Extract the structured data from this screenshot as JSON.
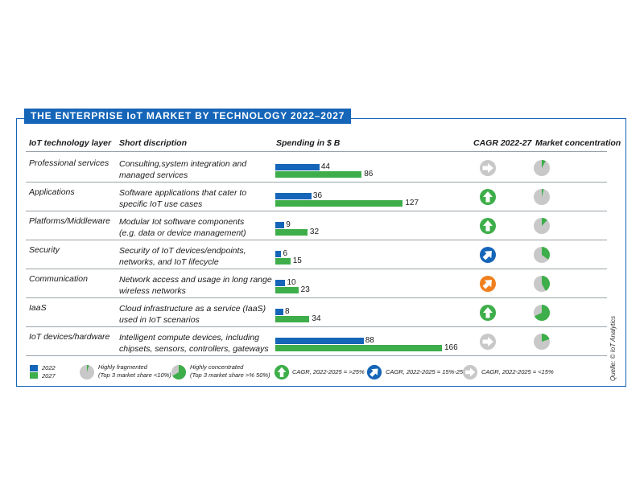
{
  "title": "THE ENTERPRISE IoT MARKET BY TECHNOLOGY 2022–2027",
  "headers": {
    "layer": "IoT technology layer",
    "description": "Short discription",
    "spending": "Spending in $ B",
    "cagr": "CAGR 2022-27",
    "concentration": "Market concentration"
  },
  "colors": {
    "y2022": "#1565b8",
    "y2027": "#3dae49",
    "cagr_high": "#3dae49",
    "cagr_mid": "#1565b8",
    "cagr_mid_alt": "#f07f1e",
    "cagr_low": "#c8c8c8",
    "fragmented": "#c8c8c8",
    "concentrated": "#3dae49"
  },
  "chart_data": {
    "type": "bar",
    "orientation": "horizontal",
    "categories": [
      "Professional services",
      "Applications",
      "Platforms/Middleware",
      "Security",
      "Communication",
      "IaaS",
      "IoT devices/hardware"
    ],
    "series": [
      {
        "name": "2022",
        "values": [
          44,
          36,
          9,
          6,
          10,
          8,
          88
        ]
      },
      {
        "name": "2027",
        "values": [
          86,
          127,
          32,
          15,
          23,
          34,
          166
        ]
      }
    ],
    "xlabel": "Spending in $ B",
    "xlim": [
      0,
      166
    ]
  },
  "rows": [
    {
      "layer": "Professional services",
      "description": "Consulting,system integration and\nmanaged services",
      "v2022": "44",
      "v2027": "86",
      "cagr": "low",
      "cagr_color": "#c8c8c8",
      "concentration_share": 0.08
    },
    {
      "layer": "Applications",
      "description": "Software applications that cater to\nspecific IoT use cases",
      "v2022": "36",
      "v2027": "127",
      "cagr": "high",
      "cagr_color": "#3dae49",
      "concentration_share": 0.04
    },
    {
      "layer": "Platforms/Middleware",
      "description": "Modular Iot software components\n (e.g. data or device management)",
      "v2022": "9",
      "v2027": "32",
      "cagr": "high",
      "cagr_color": "#3dae49",
      "concentration_share": 0.12
    },
    {
      "layer": "Security",
      "description": "Security of IoT devices/endpoints,\nnetworks, and IoT lifecycle",
      "v2022": "6",
      "v2027": "15",
      "cagr": "mid",
      "cagr_color": "#1565b8",
      "concentration_share": 0.35
    },
    {
      "layer": "Communication",
      "description": "Network access and usage in long range\nwireless networks",
      "v2022": "10",
      "v2027": "23",
      "cagr": "mid",
      "cagr_color": "#f07f1e",
      "concentration_share": 0.42
    },
    {
      "layer": "IaaS",
      "description": "Cloud infrastructure as a service (IaaS)\nused in IoT scenarios",
      "v2022": "8",
      "v2027": "34",
      "cagr": "high",
      "cagr_color": "#3dae49",
      "concentration_share": 0.68
    },
    {
      "layer": "IoT devices/hardware",
      "description": "Intelligent compute devices, including\nchipsets, sensors, controllers, gateways",
      "v2022": "88",
      "v2027": "166",
      "cagr": "low",
      "cagr_color": "#c8c8c8",
      "concentration_share": 0.2
    }
  ],
  "legend": {
    "y2022": "2022",
    "y2027": "2027",
    "fragmented": "Highly fragmented\n(Top 3 market share <10%)",
    "concentrated": "Highly concentrated\n(Top 3 market share >% 50%)",
    "cagr_high": "CAGR, 2022-2025 = >25%",
    "cagr_mid": "CAGR, 2022-2025 = 15%-25%",
    "cagr_low": "CAGR, 2022-2025 = <15%"
  },
  "source": "Quelle: © IoT Analytics"
}
